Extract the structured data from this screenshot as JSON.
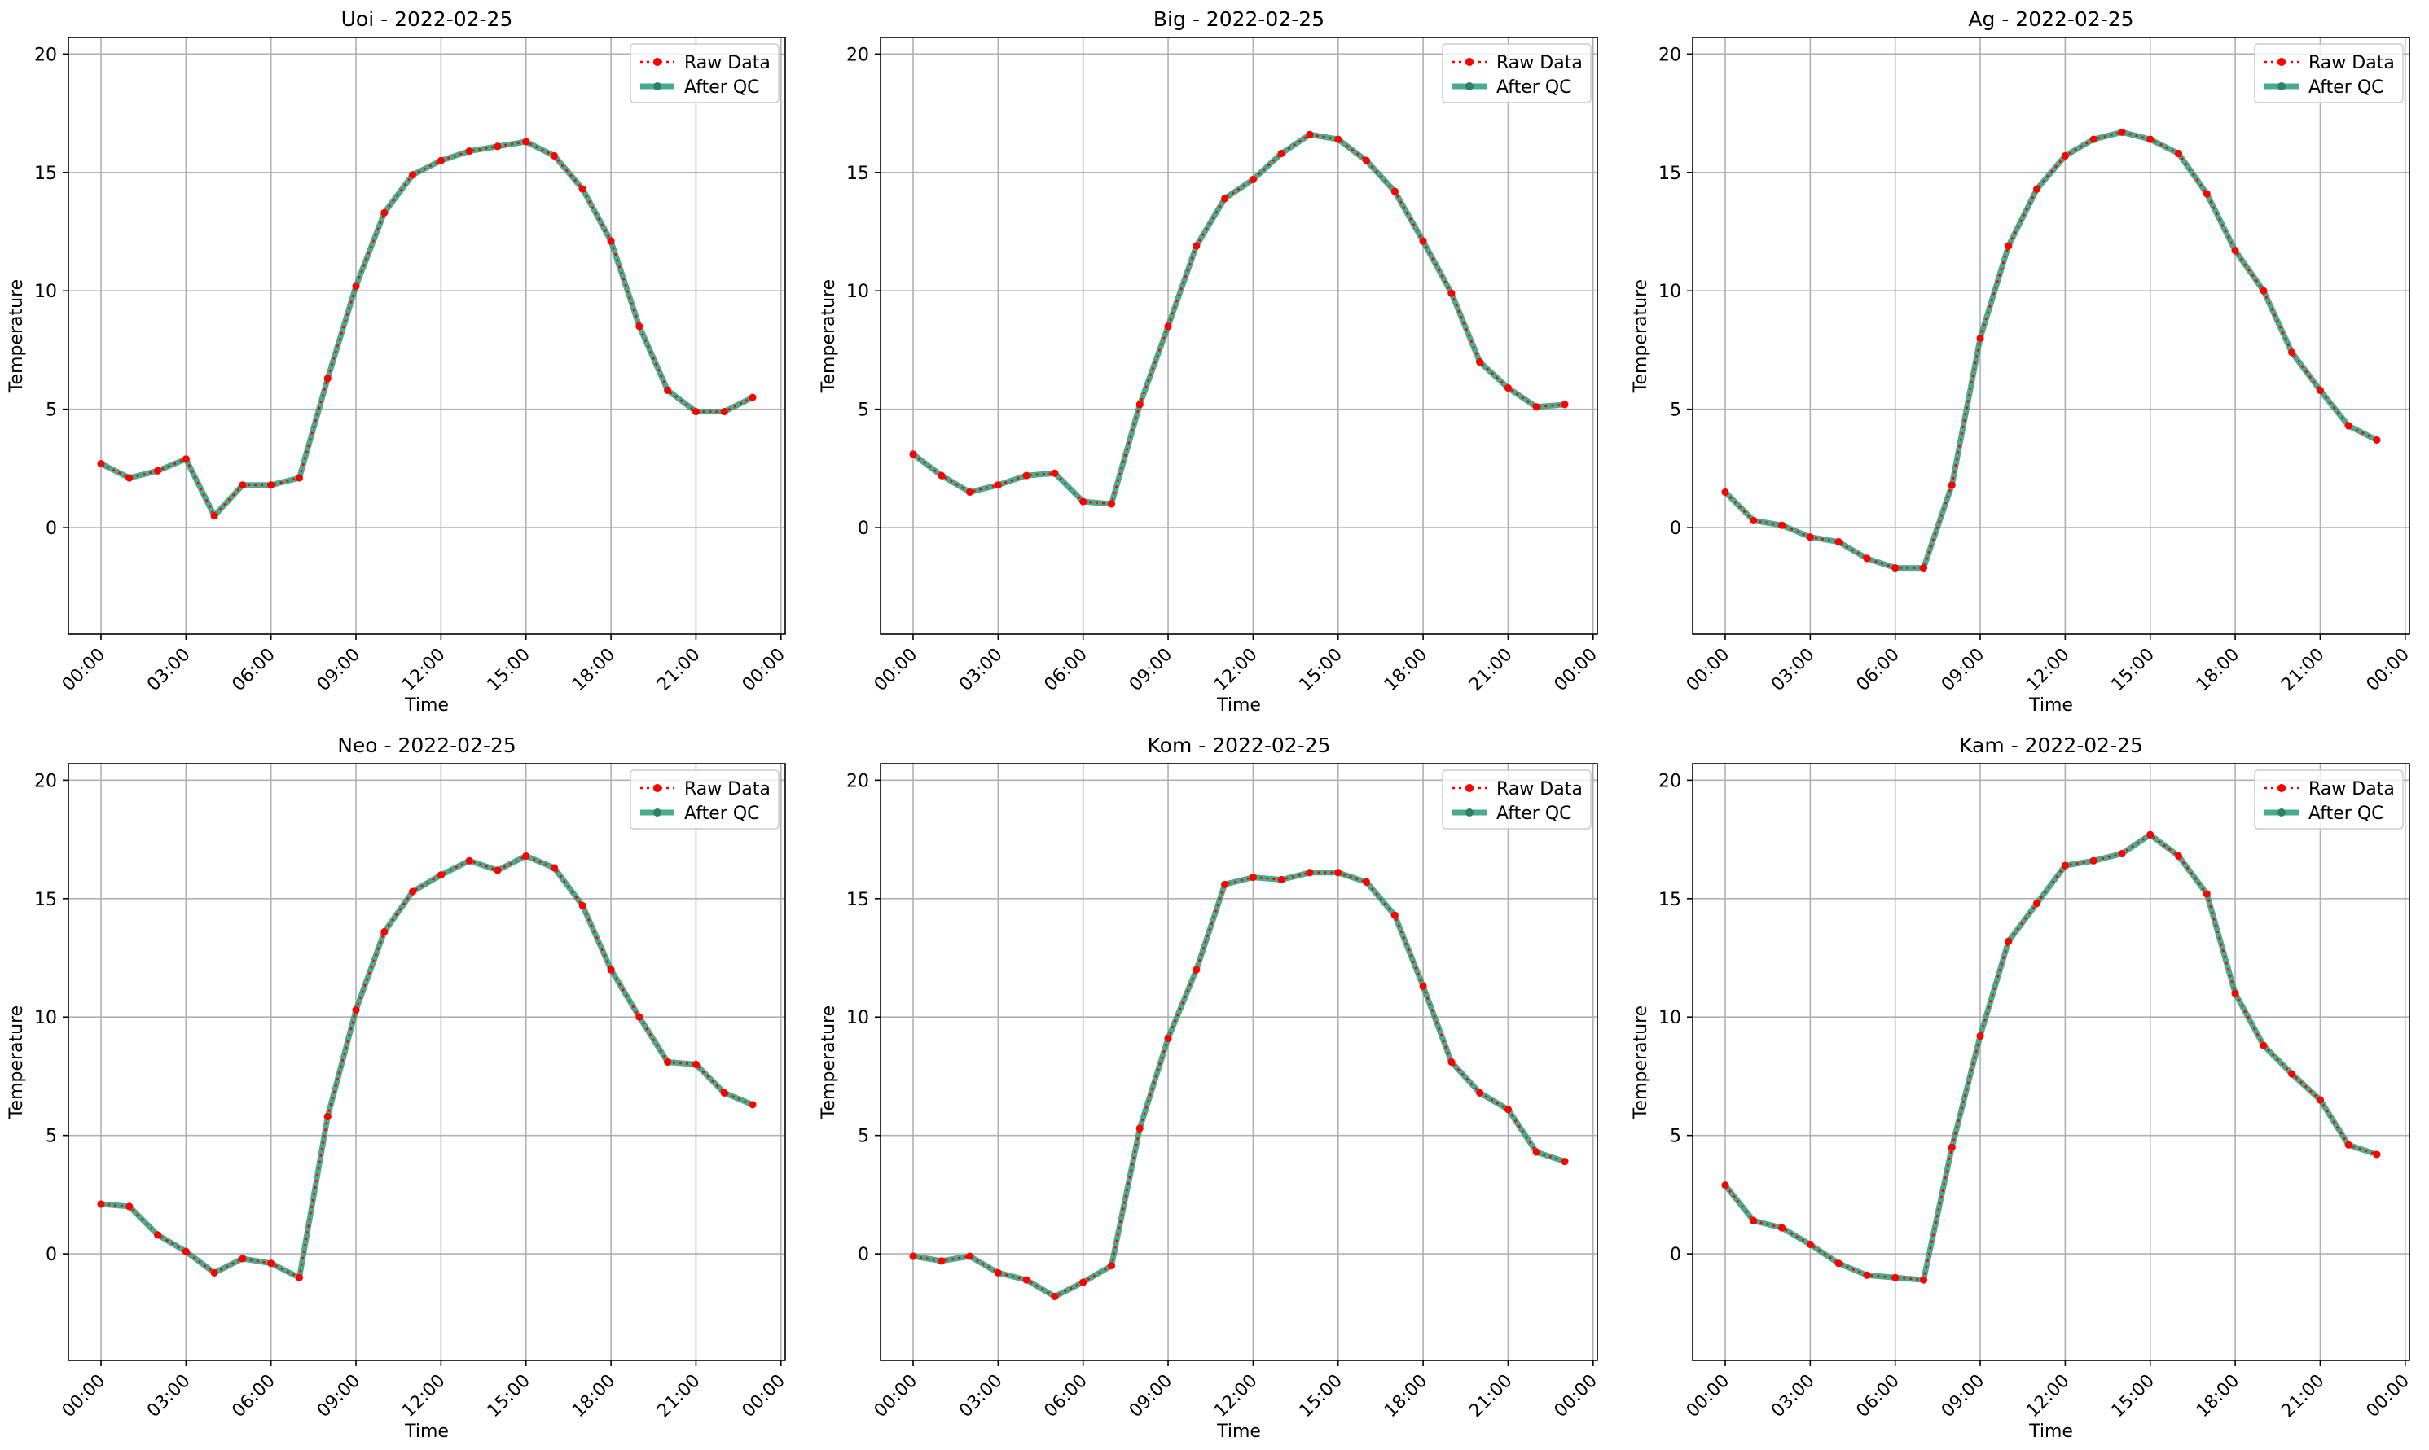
{
  "legend_labels": {
    "raw": "Raw Data",
    "qc": "After QC"
  },
  "colors": {
    "raw": "#ff0000",
    "qc": "#2a9d7a",
    "grid": "#b0b0b0",
    "marker": "#2f7f6a"
  },
  "chart_data": [
    {
      "type": "line",
      "title": "Uoi - 2022-02-25",
      "xlabel": "Time",
      "ylabel": "Temperature",
      "ylim": [
        -4.5,
        20.7
      ],
      "yticks": [
        0,
        5,
        10,
        15,
        20
      ],
      "xticks": [
        "00:00",
        "03:00",
        "06:00",
        "09:00",
        "12:00",
        "15:00",
        "18:00",
        "21:00",
        "00:00"
      ],
      "grid": true,
      "legend": "top-right",
      "x_hours": [
        0,
        1,
        2,
        3,
        4,
        5,
        6,
        7,
        8,
        9,
        10,
        11,
        12,
        13,
        14,
        15,
        16,
        17,
        18,
        19,
        20,
        21,
        22,
        23
      ],
      "series": [
        {
          "name": "Raw Data",
          "values": [
            2.7,
            2.1,
            2.4,
            2.9,
            0.5,
            1.8,
            1.8,
            2.1,
            6.3,
            10.2,
            13.3,
            14.9,
            15.5,
            15.9,
            16.1,
            16.3,
            15.7,
            14.3,
            12.1,
            8.5,
            5.8,
            4.9,
            4.9,
            5.5
          ]
        },
        {
          "name": "After QC",
          "values": [
            2.7,
            2.1,
            2.4,
            2.9,
            0.5,
            1.8,
            1.8,
            2.1,
            6.3,
            10.2,
            13.3,
            14.9,
            15.5,
            15.9,
            16.1,
            16.3,
            15.7,
            14.3,
            12.1,
            8.5,
            5.8,
            4.9,
            4.9,
            5.5
          ]
        }
      ]
    },
    {
      "type": "line",
      "title": "Big - 2022-02-25",
      "xlabel": "Time",
      "ylabel": "Temperature",
      "ylim": [
        -4.5,
        20.7
      ],
      "yticks": [
        0,
        5,
        10,
        15,
        20
      ],
      "xticks": [
        "00:00",
        "03:00",
        "06:00",
        "09:00",
        "12:00",
        "15:00",
        "18:00",
        "21:00",
        "00:00"
      ],
      "grid": true,
      "legend": "top-right",
      "x_hours": [
        0,
        1,
        2,
        3,
        4,
        5,
        6,
        7,
        8,
        9,
        10,
        11,
        12,
        13,
        14,
        15,
        16,
        17,
        18,
        19,
        20,
        21,
        22,
        23
      ],
      "series": [
        {
          "name": "Raw Data",
          "values": [
            3.1,
            2.2,
            1.5,
            1.8,
            2.2,
            2.3,
            1.1,
            1.0,
            5.2,
            8.5,
            11.9,
            13.9,
            14.7,
            15.8,
            16.6,
            16.4,
            15.5,
            14.2,
            12.1,
            9.9,
            7.0,
            5.9,
            5.1,
            5.2
          ]
        },
        {
          "name": "After QC",
          "values": [
            3.1,
            2.2,
            1.5,
            1.8,
            2.2,
            2.3,
            1.1,
            1.0,
            5.2,
            8.5,
            11.9,
            13.9,
            14.7,
            15.8,
            16.6,
            16.4,
            15.5,
            14.2,
            12.1,
            9.9,
            7.0,
            5.9,
            5.1,
            5.2
          ]
        }
      ]
    },
    {
      "type": "line",
      "title": "Ag - 2022-02-25",
      "xlabel": "Time",
      "ylabel": "Temperature",
      "ylim": [
        -4.5,
        20.7
      ],
      "yticks": [
        0,
        5,
        10,
        15,
        20
      ],
      "xticks": [
        "00:00",
        "03:00",
        "06:00",
        "09:00",
        "12:00",
        "15:00",
        "18:00",
        "21:00",
        "00:00"
      ],
      "grid": true,
      "legend": "top-right",
      "x_hours": [
        0,
        1,
        2,
        3,
        4,
        5,
        6,
        7,
        8,
        9,
        10,
        11,
        12,
        13,
        14,
        15,
        16,
        17,
        18,
        19,
        20,
        21,
        22,
        23
      ],
      "series": [
        {
          "name": "Raw Data",
          "values": [
            1.5,
            0.3,
            0.1,
            -0.4,
            -0.6,
            -1.3,
            -1.7,
            -1.7,
            1.8,
            8.0,
            11.9,
            14.3,
            15.7,
            16.4,
            16.7,
            16.4,
            15.8,
            14.1,
            11.7,
            10.0,
            7.4,
            5.8,
            4.3,
            3.7
          ]
        },
        {
          "name": "After QC",
          "values": [
            1.5,
            0.3,
            0.1,
            -0.4,
            -0.6,
            -1.3,
            -1.7,
            -1.7,
            1.8,
            8.0,
            11.9,
            14.3,
            15.7,
            16.4,
            16.7,
            16.4,
            15.8,
            14.1,
            11.7,
            10.0,
            7.4,
            5.8,
            4.3,
            3.7
          ]
        }
      ]
    },
    {
      "type": "line",
      "title": "Neo - 2022-02-25",
      "xlabel": "Time",
      "ylabel": "Temperature",
      "ylim": [
        -4.5,
        20.7
      ],
      "yticks": [
        0,
        5,
        10,
        15,
        20
      ],
      "xticks": [
        "00:00",
        "03:00",
        "06:00",
        "09:00",
        "12:00",
        "15:00",
        "18:00",
        "21:00",
        "00:00"
      ],
      "grid": true,
      "legend": "top-right",
      "x_hours": [
        0,
        1,
        2,
        3,
        4,
        5,
        6,
        7,
        8,
        9,
        10,
        11,
        12,
        13,
        14,
        15,
        16,
        17,
        18,
        19,
        20,
        21,
        22,
        23
      ],
      "series": [
        {
          "name": "Raw Data",
          "values": [
            2.1,
            2.0,
            0.8,
            0.1,
            -0.8,
            -0.2,
            -0.4,
            -1.0,
            5.8,
            10.3,
            13.6,
            15.3,
            16.0,
            16.6,
            16.2,
            16.8,
            16.3,
            14.7,
            12.0,
            10.0,
            8.1,
            8.0,
            6.8,
            6.3
          ]
        },
        {
          "name": "After QC",
          "values": [
            2.1,
            2.0,
            0.8,
            0.1,
            -0.8,
            -0.2,
            -0.4,
            -1.0,
            5.8,
            10.3,
            13.6,
            15.3,
            16.0,
            16.6,
            16.2,
            16.8,
            16.3,
            14.7,
            12.0,
            10.0,
            8.1,
            8.0,
            6.8,
            6.3
          ]
        }
      ]
    },
    {
      "type": "line",
      "title": "Kom - 2022-02-25",
      "xlabel": "Time",
      "ylabel": "Temperature",
      "ylim": [
        -4.5,
        20.7
      ],
      "yticks": [
        0,
        5,
        10,
        15,
        20
      ],
      "xticks": [
        "00:00",
        "03:00",
        "06:00",
        "09:00",
        "12:00",
        "15:00",
        "18:00",
        "21:00",
        "00:00"
      ],
      "grid": true,
      "legend": "top-right",
      "x_hours": [
        0,
        1,
        2,
        3,
        4,
        5,
        6,
        7,
        8,
        9,
        10,
        11,
        12,
        13,
        14,
        15,
        16,
        17,
        18,
        19,
        20,
        21,
        22,
        23
      ],
      "series": [
        {
          "name": "Raw Data",
          "values": [
            -0.1,
            -0.3,
            -0.1,
            -0.8,
            -1.1,
            -1.8,
            -1.2,
            -0.5,
            5.3,
            9.1,
            12.0,
            15.6,
            15.9,
            15.8,
            16.1,
            16.1,
            15.7,
            14.3,
            11.3,
            8.1,
            6.8,
            6.1,
            4.3,
            3.9
          ]
        },
        {
          "name": "After QC",
          "values": [
            -0.1,
            -0.3,
            -0.1,
            -0.8,
            -1.1,
            -1.8,
            -1.2,
            -0.5,
            5.3,
            9.1,
            12.0,
            15.6,
            15.9,
            15.8,
            16.1,
            16.1,
            15.7,
            14.3,
            11.3,
            8.1,
            6.8,
            6.1,
            4.3,
            3.9
          ]
        }
      ]
    },
    {
      "type": "line",
      "title": "Kam - 2022-02-25",
      "xlabel": "Time",
      "ylabel": "Temperature",
      "ylim": [
        -4.5,
        20.7
      ],
      "yticks": [
        0,
        5,
        10,
        15,
        20
      ],
      "xticks": [
        "00:00",
        "03:00",
        "06:00",
        "09:00",
        "12:00",
        "15:00",
        "18:00",
        "21:00",
        "00:00"
      ],
      "grid": true,
      "legend": "top-right",
      "x_hours": [
        0,
        1,
        2,
        3,
        4,
        5,
        6,
        7,
        8,
        9,
        10,
        11,
        12,
        13,
        14,
        15,
        16,
        17,
        18,
        19,
        20,
        21,
        22,
        23
      ],
      "series": [
        {
          "name": "Raw Data",
          "values": [
            2.9,
            1.4,
            1.1,
            0.4,
            -0.4,
            -0.9,
            -1.0,
            -1.1,
            4.5,
            9.2,
            13.2,
            14.8,
            16.4,
            16.6,
            16.9,
            17.7,
            16.8,
            15.2,
            11.0,
            8.8,
            7.6,
            6.5,
            4.6,
            4.2
          ]
        },
        {
          "name": "After QC",
          "values": [
            2.9,
            1.4,
            1.1,
            0.4,
            -0.4,
            -0.9,
            -1.0,
            -1.1,
            4.5,
            9.2,
            13.2,
            14.8,
            16.4,
            16.6,
            16.9,
            17.7,
            16.8,
            15.2,
            11.0,
            8.8,
            7.6,
            6.5,
            4.6,
            4.2
          ]
        }
      ]
    }
  ]
}
